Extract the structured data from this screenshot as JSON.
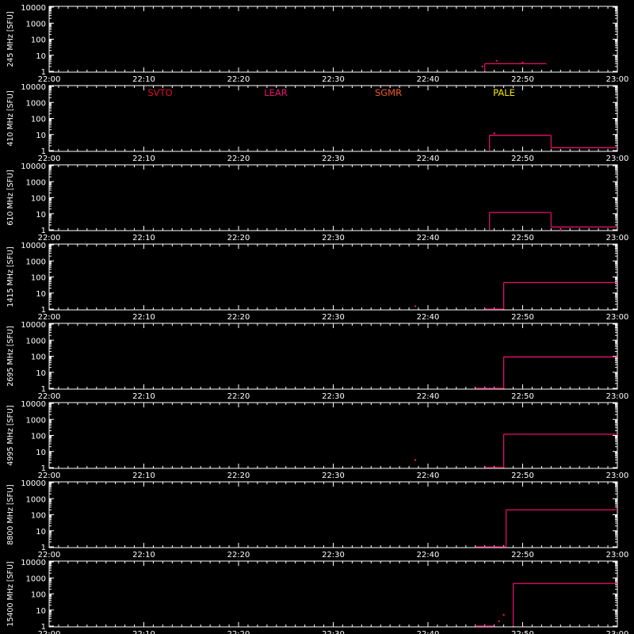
{
  "chart_data": {
    "type": "line",
    "x_range": [
      "22:00",
      "23:00"
    ],
    "xticks": [
      "22:00",
      "22:10",
      "22:20",
      "22:30",
      "22:40",
      "22:50",
      "23:00"
    ],
    "y_scale": "log",
    "y_range": [
      1,
      10000
    ],
    "yticks": [
      "1",
      "10",
      "100",
      "1000",
      "10000"
    ],
    "unit": "SFU",
    "legend": [
      {
        "name": "SVTO",
        "color": "#e0102a"
      },
      {
        "name": "LEAR",
        "color": "#e8106a"
      },
      {
        "name": "SGMR",
        "color": "#f05a28"
      },
      {
        "name": "PALE",
        "color": "#f2e600"
      }
    ],
    "legend_panel": 1,
    "series_color": "#e8106a",
    "panels": [
      {
        "ylabel": "245 MHz [SFU]",
        "segments": [
          {
            "t0": "22:46:00",
            "t1": "22:52:30",
            "v": 3
          }
        ],
        "points": [
          {
            "t": "22:45:45",
            "v": 2
          },
          {
            "t": "22:47:15",
            "v": 4.5
          },
          {
            "t": "22:50:00",
            "v": 3.5
          }
        ]
      },
      {
        "ylabel": "410 MHz [SFU]",
        "segments": [
          {
            "t0": "22:46:30",
            "t1": "22:52:45",
            "v": 9
          },
          {
            "t0": "22:53:00",
            "t1": "23:00:00",
            "v": 1.5
          }
        ],
        "points": [
          {
            "t": "22:47:00",
            "v": 12
          }
        ]
      },
      {
        "ylabel": "610 MHz [SFU]",
        "segments": [
          {
            "t0": "22:46:30",
            "t1": "22:52:45",
            "v": 12
          },
          {
            "t0": "22:53:00",
            "t1": "23:00:00",
            "v": 1.5
          }
        ],
        "points": [
          {
            "t": "22:54:00",
            "v": 1
          }
        ]
      },
      {
        "ylabel": "1415 MHz [SFU]",
        "segments": [
          {
            "t0": "22:46:00",
            "t1": "22:47:30",
            "v": 1
          },
          {
            "t0": "22:48:00",
            "t1": "23:00:00",
            "v": 45
          }
        ],
        "points": [
          {
            "t": "22:38:40",
            "v": 1.5
          }
        ]
      },
      {
        "ylabel": "2695 MHz [SFU]",
        "segments": [
          {
            "t0": "22:45:00",
            "t1": "22:47:30",
            "v": 1
          },
          {
            "t0": "22:48:00",
            "t1": "23:00:00",
            "v": 90
          }
        ],
        "points": []
      },
      {
        "ylabel": "4995 MHz [SFU]",
        "segments": [
          {
            "t0": "22:46:00",
            "t1": "22:47:30",
            "v": 1
          },
          {
            "t0": "22:48:00",
            "t1": "23:00:00",
            "v": 120
          }
        ],
        "points": [
          {
            "t": "22:38:40",
            "v": 3
          }
        ]
      },
      {
        "ylabel": "8800 MHz [SFU]",
        "segments": [
          {
            "t0": "22:45:00",
            "t1": "22:47:30",
            "v": 1
          },
          {
            "t0": "22:48:15",
            "t1": "23:00:00",
            "v": 200
          }
        ],
        "points": []
      },
      {
        "ylabel": "15400 MHz [SFU]",
        "segments": [
          {
            "t0": "22:45:00",
            "t1": "22:47:00",
            "v": 1
          },
          {
            "t0": "22:49:00",
            "t1": "23:00:00",
            "v": 450
          }
        ],
        "points": [
          {
            "t": "22:47:30",
            "v": 2
          },
          {
            "t": "22:48:00",
            "v": 5
          }
        ]
      }
    ]
  }
}
